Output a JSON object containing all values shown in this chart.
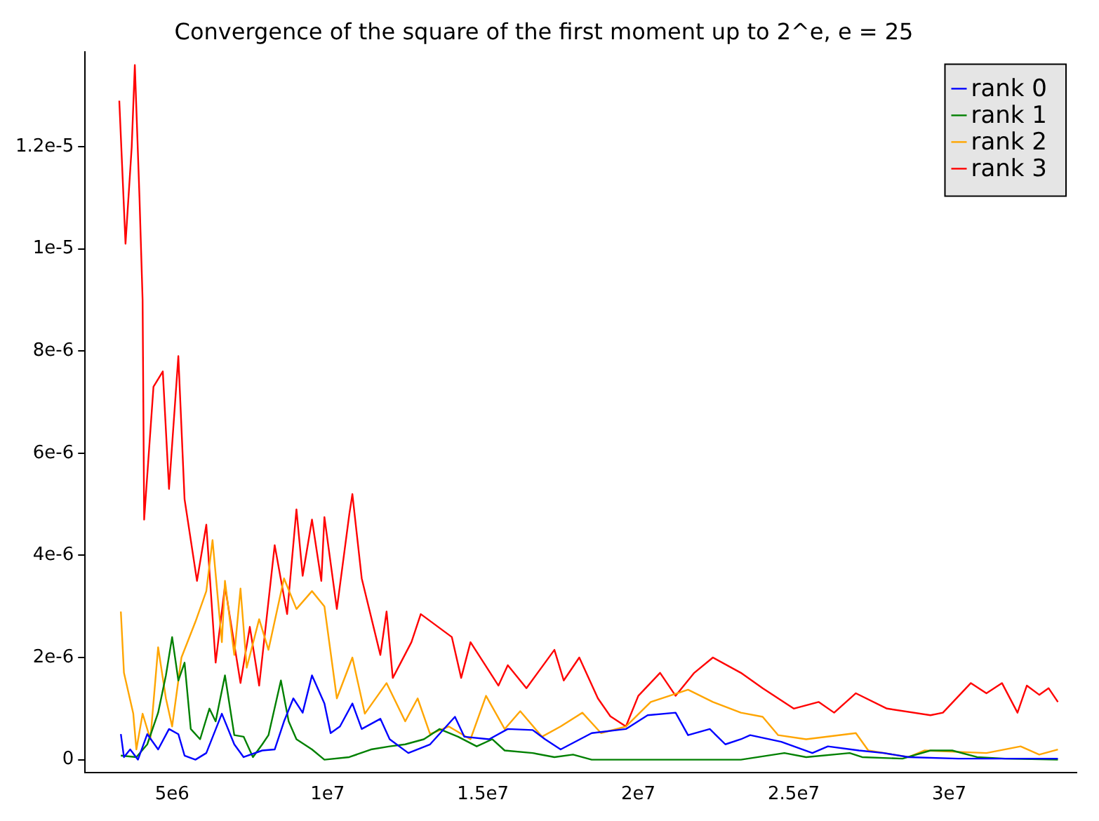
{
  "chart_data": {
    "type": "line",
    "title": "Convergence of the square of the first moment up to 2^e, e = 25",
    "xlim": [
      2200000.0,
      34100000.0
    ],
    "xticks": [
      {
        "value": 5000000.0,
        "label": "5e6"
      },
      {
        "value": 10000000.0,
        "label": "1e7"
      },
      {
        "value": 15000000.0,
        "label": "1.5e7"
      },
      {
        "value": 20000000.0,
        "label": "2e7"
      },
      {
        "value": 25000000.0,
        "label": "2.5e7"
      },
      {
        "value": 30000000.0,
        "label": "3e7"
      }
    ],
    "ylim": [
      -2.5e-07,
      1.385e-05
    ],
    "yticks": [
      {
        "value": 0,
        "label": "0"
      },
      {
        "value": 2e-06,
        "label": "2e-6"
      },
      {
        "value": 4e-06,
        "label": "4e-6"
      },
      {
        "value": 6e-06,
        "label": "6e-6"
      },
      {
        "value": 8e-06,
        "label": "8e-6"
      },
      {
        "value": 1e-05,
        "label": "1e-5"
      },
      {
        "value": 1.2e-05,
        "label": "1.2e-5"
      }
    ],
    "grid": false,
    "legend": "top right",
    "marker": "none",
    "line_style": "solid",
    "series": [
      {
        "name": "rank 0",
        "color": "#0000ff",
        "x": [
          3350000.0,
          3450000.0,
          3650000.0,
          3900000.0,
          4200000.0,
          4550000.0,
          4900000.0,
          5200000.0,
          5400000.0,
          5750000.0,
          6100000.0,
          6600000.0,
          7000000.0,
          7300000.0,
          7900000.0,
          8300000.0,
          8600000.0,
          8900000.0,
          9200000.0,
          9500000.0,
          9900000.0,
          10100000.0,
          10400000.0,
          10800000.0,
          11100000.0,
          11700000.0,
          12000000.0,
          12600000.0,
          13300000.0,
          14100000.0,
          14400000.0,
          15200000.0,
          15800000.0,
          16600000.0,
          17000000.0,
          17500000.0,
          18500000.0,
          19600000.0,
          20300000.0,
          21200000.0,
          21600000.0,
          22300000.0,
          22800000.0,
          23300000.0,
          23600000.0,
          24600000.0,
          25600000.0,
          26100000.0,
          27100000.0,
          27900000.0,
          28700000.0,
          30300000.0,
          33500000.0
        ],
        "values": [
          5e-07,
          5e-08,
          2e-07,
          0,
          5e-07,
          2e-07,
          6e-07,
          5e-07,
          8e-08,
          0,
          1.3e-07,
          9e-07,
          3e-07,
          5e-08,
          1.8e-07,
          2e-07,
          7.5e-07,
          1.2e-06,
          9.2e-07,
          1.65e-06,
          1.1e-06,
          5.2e-07,
          6.5e-07,
          1.1e-06,
          6e-07,
          8e-07,
          4e-07,
          1.3e-07,
          3e-07,
          8.4e-07,
          4.5e-07,
          4e-07,
          6e-07,
          5.8e-07,
          4e-07,
          2e-07,
          5.2e-07,
          6e-07,
          8.7e-07,
          9.2e-07,
          4.8e-07,
          6e-07,
          3e-07,
          4e-07,
          4.8e-07,
          3.5e-07,
          1.3e-07,
          2.6e-07,
          1.8e-07,
          1.3e-07,
          5e-08,
          2e-08,
          2e-08
        ]
      },
      {
        "name": "rank 1",
        "color": "#008000",
        "x": [
          3350000.0,
          3850000.0,
          4200000.0,
          4550000.0,
          4800000.0,
          5000000.0,
          5200000.0,
          5400000.0,
          5600000.0,
          5900000.0,
          6200000.0,
          6400000.0,
          6700000.0,
          7000000.0,
          7300000.0,
          7600000.0,
          7900000.0,
          8100000.0,
          8500000.0,
          8750000.0,
          9000000.0,
          9500000.0,
          9900000.0,
          10700000.0,
          11400000.0,
          12000000.0,
          12500000.0,
          13100000.0,
          13600000.0,
          14200000.0,
          14800000.0,
          15300000.0,
          15700000.0,
          16600000.0,
          17300000.0,
          17900000.0,
          18500000.0,
          23300000.0,
          24700000.0,
          25400000.0,
          26800000.0,
          27200000.0,
          28500000.0,
          29400000.0,
          30100000.0,
          30900000.0,
          31800000.0,
          33500000.0
        ],
        "values": [
          8e-08,
          5e-08,
          3e-07,
          9.2e-07,
          1.65e-06,
          2.4e-06,
          1.55e-06,
          1.9e-06,
          6e-07,
          4e-07,
          1e-06,
          7.5e-07,
          1.65e-06,
          4.8e-07,
          4.5e-07,
          5e-08,
          3e-07,
          4.8e-07,
          1.55e-06,
          7.5e-07,
          4e-07,
          2e-07,
          0,
          5e-08,
          2e-07,
          2.6e-07,
          3e-07,
          4e-07,
          6e-07,
          4.5e-07,
          2.6e-07,
          4e-07,
          1.8e-07,
          1.3e-07,
          5e-08,
          1e-07,
          0,
          0,
          1.3e-07,
          5e-08,
          1.3e-07,
          5e-08,
          2e-08,
          1.8e-07,
          1.8e-07,
          5e-08,
          2e-08,
          0
        ]
      },
      {
        "name": "rank 2",
        "color": "#ffa500",
        "x": [
          3350000.0,
          3450000.0,
          3750000.0,
          3850000.0,
          4050000.0,
          4300000.0,
          4550000.0,
          4800000.0,
          5000000.0,
          5300000.0,
          5750000.0,
          6100000.0,
          6300000.0,
          6600000.0,
          6700000.0,
          7000000.0,
          7200000.0,
          7400000.0,
          7800000.0,
          8100000.0,
          8600000.0,
          9000000.0,
          9500000.0,
          9900000.0,
          10300000.0,
          10800000.0,
          11200000.0,
          11900000.0,
          12500000.0,
          12900000.0,
          13300000.0,
          13900000.0,
          14600000.0,
          15100000.0,
          15700000.0,
          16200000.0,
          16900000.0,
          17500000.0,
          18200000.0,
          18800000.0,
          19600000.0,
          20400000.0,
          21600000.0,
          22400000.0,
          23300000.0,
          24000000.0,
          24500000.0,
          25400000.0,
          27000000.0,
          27400000.0,
          28700000.0,
          29200000.0,
          31200000.0,
          32300000.0,
          32900000.0,
          33500000.0
        ],
        "values": [
          2.9e-06,
          1.7e-06,
          9e-07,
          2e-07,
          9e-07,
          4e-07,
          2.2e-06,
          1.2e-06,
          6.5e-07,
          2e-06,
          2.7e-06,
          3.3e-06,
          4.3e-06,
          2.3e-06,
          3.5e-06,
          2.05e-06,
          3.35e-06,
          1.8e-06,
          2.75e-06,
          2.15e-06,
          3.55e-06,
          2.95e-06,
          3.3e-06,
          3e-06,
          1.2e-06,
          2e-06,
          9e-07,
          1.5e-06,
          7.5e-07,
          1.2e-06,
          5e-07,
          6.5e-07,
          4e-07,
          1.25e-06,
          6e-07,
          9.5e-07,
          4.5e-07,
          6.5e-07,
          9.2e-07,
          5.2e-07,
          6.5e-07,
          1.13e-06,
          1.37e-06,
          1.13e-06,
          9.2e-07,
          8.4e-07,
          4.8e-07,
          4e-07,
          5.2e-07,
          1.8e-07,
          5e-08,
          1.8e-07,
          1.3e-07,
          2.6e-07,
          1e-07,
          2e-07
        ]
      },
      {
        "name": "rank 3",
        "color": "#ff0000",
        "x": [
          3300000.0,
          3500000.0,
          3700000.0,
          3800000.0,
          3950000.0,
          4050000.0,
          4100000.0,
          4400000.0,
          4700000.0,
          4900000.0,
          5200000.0,
          5400000.0,
          5800000.0,
          6100000.0,
          6400000.0,
          6700000.0,
          7200000.0,
          7500000.0,
          7800000.0,
          8300000.0,
          8700000.0,
          9000000.0,
          9200000.0,
          9500000.0,
          9800000.0,
          9900000.0,
          10300000.0,
          10700000.0,
          10800000.0,
          11100000.0,
          11700000.0,
          11900000.0,
          12100000.0,
          12700000.0,
          13000000.0,
          14000000.0,
          14300000.0,
          14600000.0,
          15500000.0,
          15800000.0,
          16400000.0,
          17300000.0,
          17600000.0,
          18100000.0,
          18700000.0,
          19100000.0,
          19600000.0,
          20000000.0,
          20700000.0,
          21200000.0,
          21800000.0,
          22400000.0,
          23300000.0,
          24000000.0,
          25000000.0,
          25800000.0,
          26300000.0,
          27000000.0,
          28000000.0,
          29400000.0,
          29800000.0,
          30700000.0,
          31200000.0,
          31700000.0,
          32200000.0,
          32500000.0,
          32900000.0,
          33200000.0,
          33500000.0
        ],
        "values": [
          1.29e-05,
          1.01e-05,
          1.2e-05,
          1.36e-05,
          1.1e-05,
          9e-06,
          4.7e-06,
          7.3e-06,
          7.6e-06,
          5.3e-06,
          7.9e-06,
          5.1e-06,
          3.5e-06,
          4.6e-06,
          1.9e-06,
          3.4e-06,
          1.5e-06,
          2.6e-06,
          1.45e-06,
          4.2e-06,
          2.85e-06,
          4.9e-06,
          3.6e-06,
          4.7e-06,
          3.5e-06,
          4.75e-06,
          2.95e-06,
          4.8e-06,
          5.2e-06,
          3.55e-06,
          2.05e-06,
          2.9e-06,
          1.6e-06,
          2.3e-06,
          2.85e-06,
          2.4e-06,
          1.6e-06,
          2.3e-06,
          1.45e-06,
          1.85e-06,
          1.4e-06,
          2.15e-06,
          1.55e-06,
          2e-06,
          1.2e-06,
          8.5e-07,
          6.5e-07,
          1.25e-06,
          1.7e-06,
          1.25e-06,
          1.7e-06,
          2e-06,
          1.7e-06,
          1.4e-06,
          1e-06,
          1.13e-06,
          9.2e-07,
          1.3e-06,
          1e-06,
          8.7e-07,
          9.2e-07,
          1.5e-06,
          1.3e-06,
          1.5e-06,
          9.2e-07,
          1.45e-06,
          1.27e-06,
          1.4e-06,
          1.13e-06
        ]
      }
    ]
  }
}
